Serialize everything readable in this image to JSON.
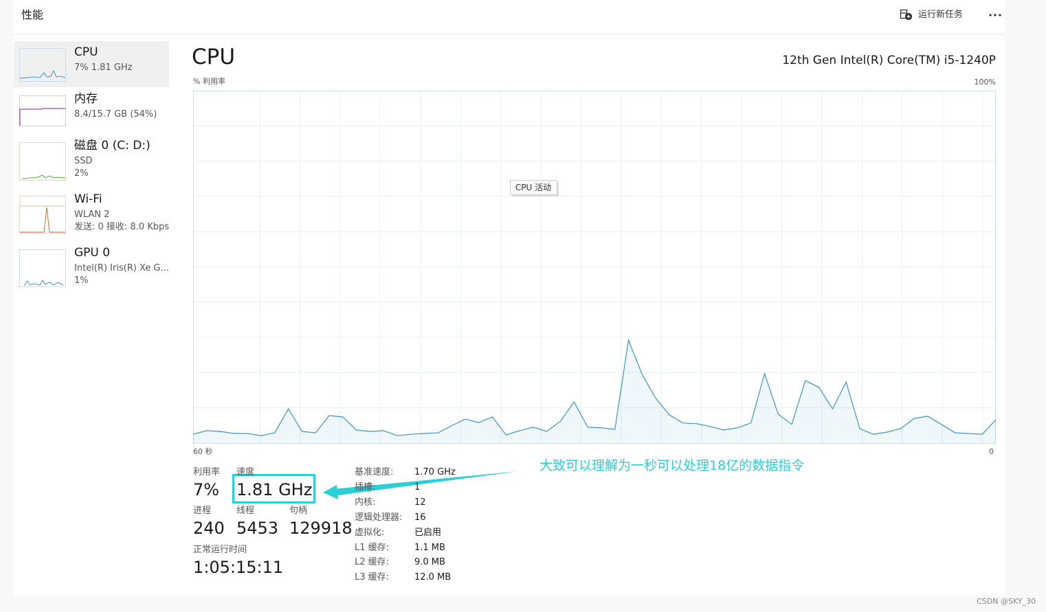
{
  "header": {
    "title": "性能",
    "run_task": "运行新任务"
  },
  "sidebar": [
    {
      "title": "CPU",
      "lines": [
        "7% 1.81 GHz"
      ]
    },
    {
      "title": "内存",
      "lines": [
        "8.4/15.7 GB (54%)"
      ]
    },
    {
      "title": "磁盘 0 (C: D:)",
      "lines": [
        "SSD",
        "2%"
      ]
    },
    {
      "title": "Wi-Fi",
      "lines": [
        "WLAN 2",
        "发送: 0 接收: 8.0 Kbps"
      ]
    },
    {
      "title": "GPU 0",
      "lines": [
        "Intel(R) Iris(R) Xe G...",
        "1%"
      ]
    }
  ],
  "main": {
    "title": "CPU",
    "model": "12th Gen Intel(R) Core(TM) i5-1240P"
  },
  "cpu_graph": {
    "type": "line",
    "y_label": "% 利用率",
    "tooltip": "CPU 活动",
    "color": "#3d93c9",
    "ylim": [
      0,
      100
    ],
    "yticks": [
      {
        "value": 100,
        "label": "100%"
      }
    ],
    "xlim": [
      60,
      0
    ],
    "xticks": [
      {
        "value": 60,
        "label": "60 秒"
      },
      0
    ],
    "values": [
      2.5,
      3.5,
      3.3,
      2.7,
      2.7,
      2.1,
      2.9,
      9.7,
      3.3,
      2.9,
      7.8,
      7.4,
      3.7,
      3.3,
      3.5,
      2.1,
      2.5,
      2.7,
      2.9,
      4.9,
      6.8,
      5.8,
      7.4,
      2.3,
      3.5,
      4.5,
      3.3,
      6.2,
      11.7,
      4.5,
      4.3,
      3.9,
      29.2,
      19.5,
      12.7,
      8.0,
      5.7,
      5.5,
      4.7,
      3.7,
      4.3,
      5.7,
      19.7,
      8.2,
      5.3,
      17.7,
      15.8,
      9.7,
      17.3,
      4.1,
      2.5,
      3.1,
      4.1,
      7.0,
      7.6,
      5.3,
      2.9,
      2.7,
      2.5,
      6.6
    ]
  },
  "stats": [
    {
      "label": "利用率",
      "value": "7%"
    },
    {
      "label": "速度",
      "value": "1.81 GHz"
    },
    {
      "label": "进程",
      "value": "240"
    },
    {
      "label": "线程",
      "value": "5453"
    },
    {
      "label": "句柄",
      "value": "129918"
    },
    {
      "label": "正常运行时间",
      "value": "1:05:15:11"
    }
  ],
  "specs": [
    [
      "基准速度:",
      "1.70 GHz"
    ],
    [
      "插槽:",
      "1"
    ],
    [
      "内核:",
      "12"
    ],
    [
      "逻辑处理器:",
      "16"
    ],
    [
      "虚拟化:",
      "已启用"
    ],
    [
      "L1 缓存:",
      "1.1 MB"
    ],
    [
      "L2 缓存:",
      "9.0 MB"
    ],
    [
      "L3 缓存:",
      "12.0 MB"
    ]
  ],
  "annotation": "大致可以理解为一秒可以处理18亿的数据指令",
  "watermark": "CSDN @SKY_30"
}
